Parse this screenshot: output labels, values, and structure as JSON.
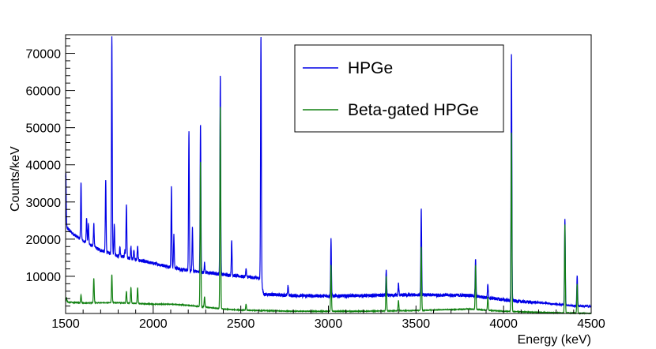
{
  "chart_data": {
    "type": "line",
    "xlabel": "Energy (keV)",
    "ylabel": "Counts/keV",
    "xlim": [
      1500,
      4500
    ],
    "ylim": [
      0,
      75000
    ],
    "x_ticks": [
      1500,
      2000,
      2500,
      3000,
      3500,
      4000,
      4500
    ],
    "y_ticks": [
      10000,
      20000,
      30000,
      40000,
      50000,
      60000,
      70000
    ],
    "x_tick_labels": [
      "1500",
      "2000",
      "2500",
      "3000",
      "3500",
      "4000",
      "4500"
    ],
    "y_tick_labels": [
      "10000",
      "20000",
      "30000",
      "40000",
      "50000",
      "60000",
      "70000"
    ],
    "legend": {
      "position": "top-right",
      "entries": [
        "HPGe",
        "Beta-gated HPGe"
      ]
    },
    "series": [
      {
        "name": "HPGe",
        "color": "#0000e6",
        "continuum": [
          [
            1500,
            23500
          ],
          [
            1540,
            21500
          ],
          [
            1600,
            19500
          ],
          [
            1700,
            17000
          ],
          [
            1800,
            15500
          ],
          [
            1900,
            14500
          ],
          [
            2000,
            13500
          ],
          [
            2100,
            12500
          ],
          [
            2200,
            11500
          ],
          [
            2300,
            11000
          ],
          [
            2400,
            10500
          ],
          [
            2500,
            10000
          ],
          [
            2600,
            9500
          ],
          [
            2615,
            9300
          ],
          [
            2630,
            5200
          ],
          [
            2800,
            4800
          ],
          [
            3000,
            4700
          ],
          [
            3200,
            4800
          ],
          [
            3500,
            5000
          ],
          [
            3800,
            4900
          ],
          [
            3900,
            4300
          ],
          [
            4000,
            3700
          ],
          [
            4100,
            3200
          ],
          [
            4200,
            2900
          ],
          [
            4300,
            2500
          ],
          [
            4400,
            2100
          ],
          [
            4500,
            1900
          ]
        ],
        "peaks": [
          [
            1501,
            38000
          ],
          [
            1588,
            35000
          ],
          [
            1620,
            26000
          ],
          [
            1630,
            24000
          ],
          [
            1661,
            24000
          ],
          [
            1729,
            36000
          ],
          [
            1764,
            75000
          ],
          [
            1778,
            24000
          ],
          [
            1810,
            18000
          ],
          [
            1838,
            17000
          ],
          [
            1847,
            29500
          ],
          [
            1873,
            18000
          ],
          [
            1890,
            17000
          ],
          [
            1911,
            18000
          ],
          [
            2104,
            34000
          ],
          [
            2118,
            21000
          ],
          [
            2204,
            49000
          ],
          [
            2224,
            23000
          ],
          [
            2270,
            51000
          ],
          [
            2293,
            13500
          ],
          [
            2383,
            64500
          ],
          [
            2448,
            19500
          ],
          [
            2530,
            12000
          ],
          [
            2615,
            75000
          ],
          [
            2770,
            7500
          ],
          [
            3015,
            20000
          ],
          [
            3330,
            11500
          ],
          [
            3400,
            8000
          ],
          [
            3530,
            28000
          ],
          [
            3840,
            14800
          ],
          [
            3910,
            7800
          ],
          [
            4045,
            70500
          ],
          [
            4350,
            25500
          ],
          [
            4420,
            10200
          ]
        ]
      },
      {
        "name": "Beta-gated HPGe",
        "color": "#108010",
        "continuum": [
          [
            1500,
            3100
          ],
          [
            1600,
            2800
          ],
          [
            1700,
            2900
          ],
          [
            1800,
            2900
          ],
          [
            1900,
            2700
          ],
          [
            2000,
            2500
          ],
          [
            2100,
            2500
          ],
          [
            2200,
            2200
          ],
          [
            2300,
            1700
          ],
          [
            2400,
            1200
          ],
          [
            2500,
            900
          ],
          [
            2600,
            800
          ],
          [
            2700,
            700
          ],
          [
            2800,
            600
          ],
          [
            3000,
            600
          ],
          [
            3200,
            600
          ],
          [
            3500,
            800
          ],
          [
            3800,
            1200
          ],
          [
            3900,
            900
          ],
          [
            4000,
            600
          ],
          [
            4200,
            300
          ],
          [
            4400,
            100
          ],
          [
            4500,
            0
          ]
        ],
        "peaks": [
          [
            1505,
            4200
          ],
          [
            1588,
            5000
          ],
          [
            1661,
            9500
          ],
          [
            1764,
            10500
          ],
          [
            1847,
            6000
          ],
          [
            1873,
            7000
          ],
          [
            1911,
            7000
          ],
          [
            2270,
            41000
          ],
          [
            2293,
            4500
          ],
          [
            2383,
            56000
          ],
          [
            2530,
            2500
          ],
          [
            3015,
            13000
          ],
          [
            3330,
            10000
          ],
          [
            3400,
            3500
          ],
          [
            3530,
            18000
          ],
          [
            3840,
            13000
          ],
          [
            3910,
            4500
          ],
          [
            4045,
            49000
          ],
          [
            4350,
            24000
          ],
          [
            4420,
            8000
          ]
        ]
      }
    ]
  }
}
